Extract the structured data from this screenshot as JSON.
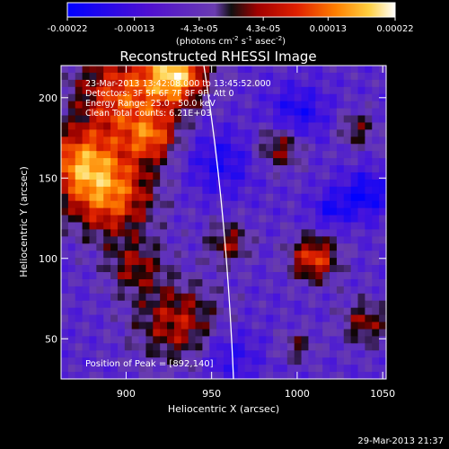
{
  "chart_data": {
    "type": "heatmap",
    "title": "Reconstructed RHESSI Image",
    "xlabel": "Heliocentric X (arcsec)",
    "ylabel": "Heliocentric Y (arcsec)",
    "xlim": [
      862,
      1052
    ],
    "ylim": [
      25,
      220
    ],
    "x_ticks": [
      900,
      950,
      1000,
      1050
    ],
    "y_ticks": [
      50,
      100,
      150,
      200
    ],
    "colorbar": {
      "range": [
        -0.00022,
        0.00022
      ],
      "tick_values": [
        -0.00022,
        -0.00013,
        -4.3e-05,
        4.3e-05,
        0.00013,
        0.00022
      ],
      "tick_labels": [
        "-0.00022",
        "-0.00013",
        "-4.3e-05",
        "4.3e-05",
        "0.00013",
        "0.00022"
      ],
      "units_prefix": "(photons cm",
      "units_exp1": "-2",
      "units_mid": " s",
      "units_exp2": "-1",
      "units_mid2": " asec",
      "units_exp3": "-2",
      "units_suffix": ")"
    },
    "info_lines": [
      "23-Mar-2013 13:42:08.000 to 13:45:52.000",
      "Detectors: 3F 5F 6F 7F 8F 9F, Att 0",
      "Energy Range: 25.0 - 50.0 keV",
      "Clean     Total counts: 6.21E+03"
    ],
    "peak_label": "Position of Peak = [892,140]",
    "peak_position": [
      892,
      140
    ],
    "sources": [
      {
        "x": 900,
        "y": 200,
        "sigma": 22,
        "amp": 0.00018
      },
      {
        "x": 930,
        "y": 215,
        "sigma": 12,
        "amp": 0.00022
      },
      {
        "x": 890,
        "y": 140,
        "sigma": 18,
        "amp": 0.0002
      },
      {
        "x": 872,
        "y": 160,
        "sigma": 14,
        "amp": 0.00016
      },
      {
        "x": 915,
        "y": 175,
        "sigma": 10,
        "amp": 0.00012
      },
      {
        "x": 930,
        "y": 60,
        "sigma": 18,
        "amp": 0.00013
      },
      {
        "x": 905,
        "y": 95,
        "sigma": 12,
        "amp": 0.0001
      },
      {
        "x": 960,
        "y": 110,
        "sigma": 9,
        "amp": 0.00011
      },
      {
        "x": 990,
        "y": 170,
        "sigma": 10,
        "amp": 0.00012
      },
      {
        "x": 1010,
        "y": 100,
        "sigma": 10,
        "amp": 0.00017
      },
      {
        "x": 1035,
        "y": 180,
        "sigma": 8,
        "amp": 9e-05
      },
      {
        "x": 1040,
        "y": 60,
        "sigma": 10,
        "amp": 0.00011
      },
      {
        "x": 1000,
        "y": 45,
        "sigma": 7,
        "amp": 8e-05
      },
      {
        "x": 955,
        "y": 160,
        "sigma": 14,
        "amp": -9e-05
      },
      {
        "x": 1000,
        "y": 190,
        "sigma": 12,
        "amp": -0.0001
      },
      {
        "x": 1040,
        "y": 140,
        "sigma": 10,
        "amp": -0.00012
      },
      {
        "x": 960,
        "y": 40,
        "sigma": 12,
        "amp": -8e-05
      },
      {
        "x": 1020,
        "y": 130,
        "sigma": 8,
        "amp": -9e-05
      }
    ]
  },
  "timestamp": "29-Mar-2013 21:37"
}
